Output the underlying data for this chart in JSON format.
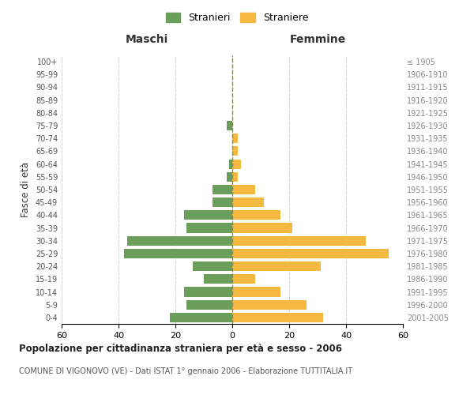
{
  "age_groups": [
    "0-4",
    "5-9",
    "10-14",
    "15-19",
    "20-24",
    "25-29",
    "30-34",
    "35-39",
    "40-44",
    "45-49",
    "50-54",
    "55-59",
    "60-64",
    "65-69",
    "70-74",
    "75-79",
    "80-84",
    "85-89",
    "90-94",
    "95-99",
    "100+"
  ],
  "birth_years": [
    "2001-2005",
    "1996-2000",
    "1991-1995",
    "1986-1990",
    "1981-1985",
    "1976-1980",
    "1971-1975",
    "1966-1970",
    "1961-1965",
    "1956-1960",
    "1951-1955",
    "1946-1950",
    "1941-1945",
    "1936-1940",
    "1931-1935",
    "1926-1930",
    "1921-1925",
    "1916-1920",
    "1911-1915",
    "1906-1910",
    "≤ 1905"
  ],
  "maschi": [
    22,
    16,
    17,
    10,
    14,
    38,
    37,
    16,
    17,
    7,
    7,
    2,
    1,
    0,
    0,
    2,
    0,
    0,
    0,
    0,
    0
  ],
  "femmine": [
    32,
    26,
    17,
    8,
    31,
    55,
    47,
    21,
    17,
    11,
    8,
    2,
    3,
    2,
    2,
    0,
    0,
    0,
    0,
    0,
    0
  ],
  "color_maschi": "#6a9e5a",
  "color_femmine": "#f5b942",
  "title_main": "Popolazione per cittadinanza straniera per età e sesso - 2006",
  "subtitle": "COMUNE DI VIGONOVO (VE) - Dati ISTAT 1° gennaio 2006 - Elaborazione TUTTITALIA.IT",
  "legend_maschi": "Stranieri",
  "legend_femmine": "Straniere",
  "xlabel_left": "Maschi",
  "xlabel_right": "Femmine",
  "ylabel_left": "Fasce di età",
  "xlim": 60,
  "background_color": "#ffffff",
  "grid_color": "#cccccc"
}
